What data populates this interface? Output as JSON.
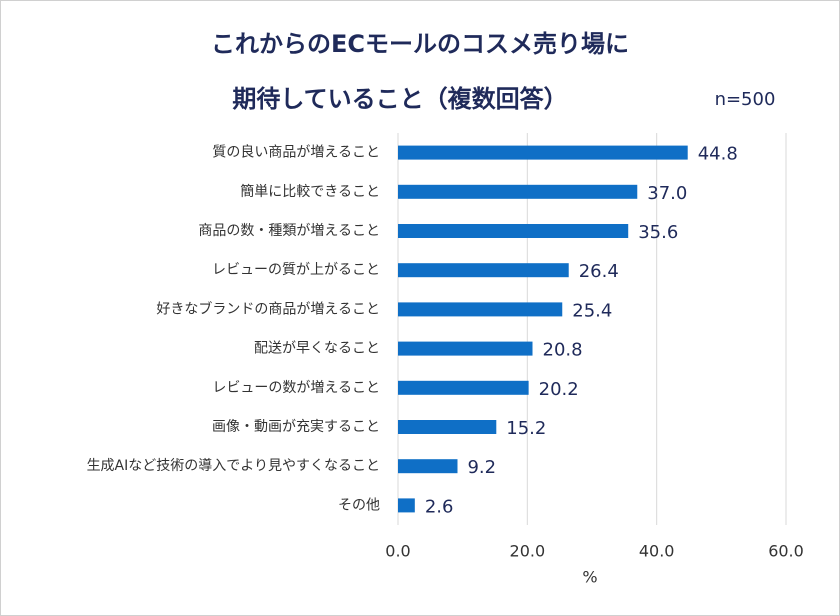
{
  "chart_data": {
    "type": "bar",
    "orientation": "horizontal",
    "title": [
      "これからのECモールのコスメ売り場に",
      "期待していること（複数回答）"
    ],
    "note": "n=500",
    "xlabel": "%",
    "categories": [
      "質の良い商品が増えること",
      "簡単に比較できること",
      "商品の数・種類が増えること",
      "レビューの質が上がること",
      "好きなブランドの商品が増えること",
      "配送が早くなること",
      "レビューの数が増えること",
      "画像・動画が充実すること",
      "生成AIなど技術の導入でより見やすくなること",
      "その他"
    ],
    "values": [
      44.8,
      37.0,
      35.6,
      26.4,
      25.4,
      20.8,
      20.2,
      15.2,
      9.2,
      2.6
    ],
    "value_labels": [
      "44.8",
      "37.0",
      "35.6",
      "26.4",
      "25.4",
      "20.8",
      "20.2",
      "15.2",
      "9.2",
      "2.6"
    ],
    "color": "#0f6fc6",
    "xlim": [
      0,
      60
    ],
    "xticks": [
      {
        "value": 0,
        "label": "0.0"
      },
      {
        "value": 20,
        "label": "20.0"
      },
      {
        "value": 40,
        "label": "40.0"
      },
      {
        "value": 60,
        "label": "60.0"
      }
    ],
    "grid": true
  }
}
